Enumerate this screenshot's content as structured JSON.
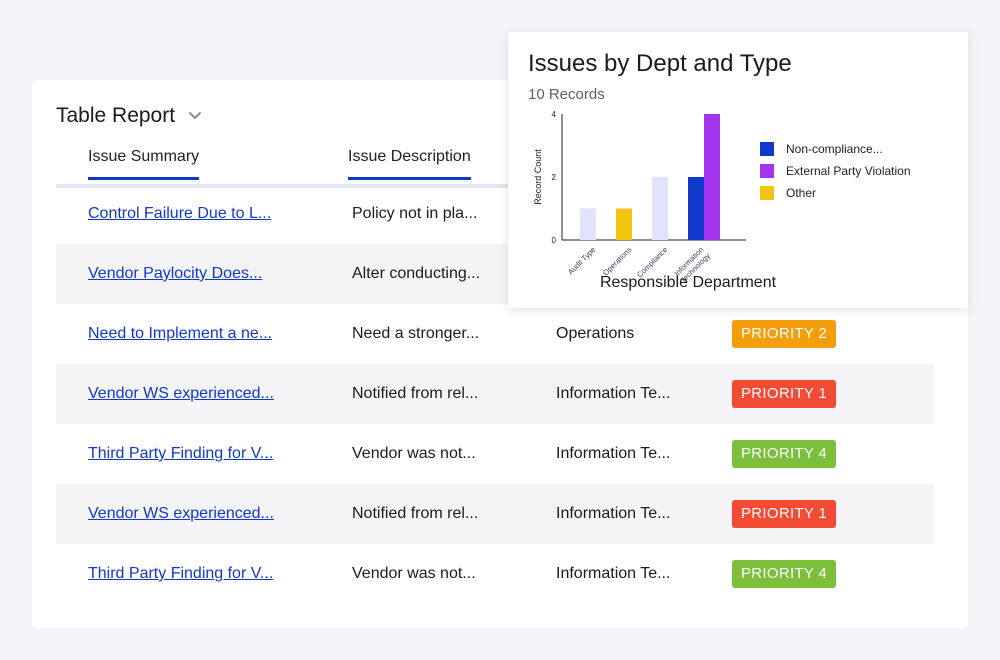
{
  "report": {
    "title": "Table Report"
  },
  "columns": [
    "Issue Summary",
    "Issue Description"
  ],
  "rows": [
    {
      "summary": "Control Failure Due to L...",
      "description": "Policy not in pla...",
      "department": "",
      "priority": ""
    },
    {
      "summary": "Vendor Paylocity Does...",
      "description": "Alter conducting...",
      "department": "",
      "priority": ""
    },
    {
      "summary": "Need to Implement a ne...",
      "description": "Need a stronger...",
      "department": "Operations",
      "priority": "PRIORITY 2",
      "priority_color": "#f59e0b"
    },
    {
      "summary": "Vendor WS experienced...",
      "description": "Notified from rel...",
      "department": "Information Te...",
      "priority": "PRIORITY 1",
      "priority_color": "#f44b34"
    },
    {
      "summary": "Third Party Finding for V...",
      "description": "Vendor was not...",
      "department": "Information Te...",
      "priority": "PRIORITY 4",
      "priority_color": "#7cbf3a"
    },
    {
      "summary": "Vendor WS experienced...",
      "description": "Notified from rel...",
      "department": "Information Te...",
      "priority": "PRIORITY 1",
      "priority_color": "#f44b34"
    },
    {
      "summary": "Third Party Finding for V...",
      "description": "Vendor was not...",
      "department": "Information Te...",
      "priority": "PRIORITY 4",
      "priority_color": "#7cbf3a"
    }
  ],
  "chart_data": {
    "type": "bar",
    "title": "Issues by Dept and Type",
    "subtitle": "10 Records",
    "xlabel": "Responsible Department",
    "ylabel": "Record Count",
    "ylim": [
      0,
      4
    ],
    "yticks": [
      "0",
      "2",
      "4"
    ],
    "categories": [
      "Audit Type",
      "Operations",
      "Compliance",
      "Information Technology"
    ],
    "series": [
      {
        "name": "Non-compliance...",
        "color": "#1238c9",
        "values": [
          0,
          0,
          0,
          2
        ]
      },
      {
        "name": "External Party Violation",
        "color": "#a534f0",
        "values": [
          0,
          0,
          0,
          4
        ]
      },
      {
        "name": "Other",
        "color": "#f2c40f",
        "values": [
          0,
          1,
          0,
          0
        ]
      }
    ],
    "placeholder_values": [
      1,
      0,
      2,
      0
    ],
    "placeholder_color": "#dfe3fb",
    "legend_position": "right"
  }
}
